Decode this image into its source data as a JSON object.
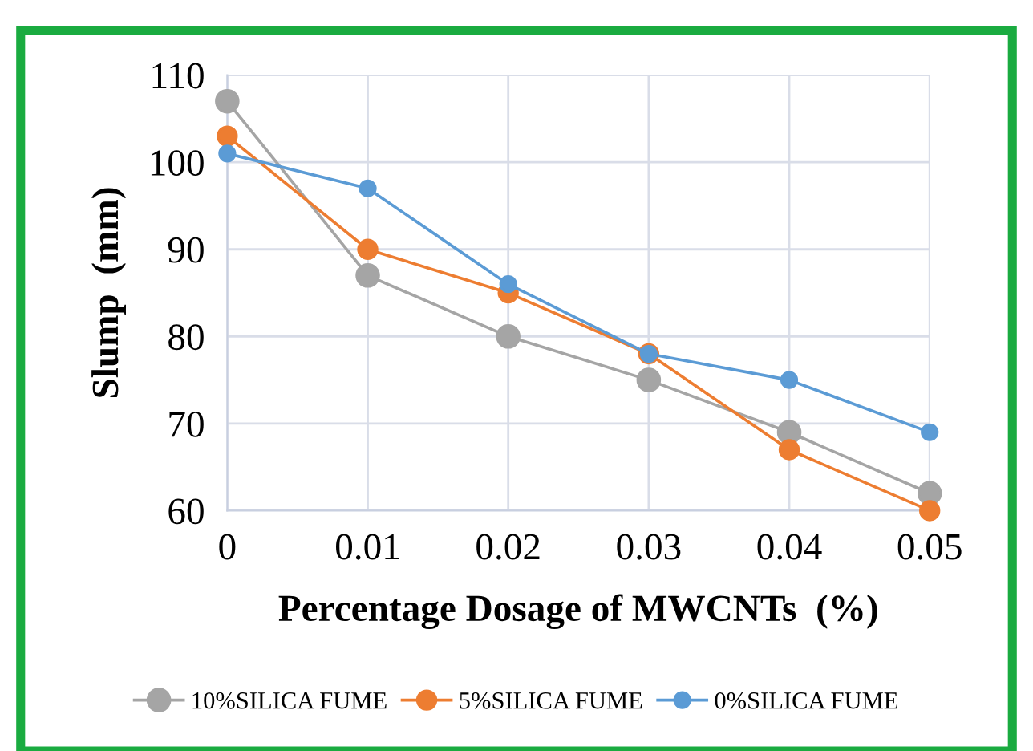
{
  "chart_data": {
    "type": "line",
    "xlabel": "Percentage Dosage of MWCNTs  (%)",
    "ylabel": "Slump  (mm)",
    "x": [
      0,
      0.01,
      0.02,
      0.03,
      0.04,
      0.05
    ],
    "series": [
      {
        "name": "10%SILICA FUME",
        "color": "#a5a5a5",
        "values": [
          107,
          87,
          80,
          75,
          69,
          62
        ]
      },
      {
        "name": "5%SILICA FUME",
        "color": "#ed7d31",
        "values": [
          103,
          90,
          85,
          78,
          67,
          60
        ]
      },
      {
        "name": "0%SILICA FUME",
        "color": "#5b9bd5",
        "values": [
          101,
          97,
          86,
          78,
          75,
          69
        ]
      }
    ],
    "xlim": [
      0,
      0.05
    ],
    "xticks": [
      0,
      0.01,
      0.02,
      0.03,
      0.04,
      0.05
    ],
    "ylim": [
      60,
      110
    ],
    "yticks": [
      60,
      70,
      80,
      90,
      100,
      110
    ],
    "grid": true,
    "legend": "bottom",
    "marker": "circle",
    "line_style": "solid"
  }
}
